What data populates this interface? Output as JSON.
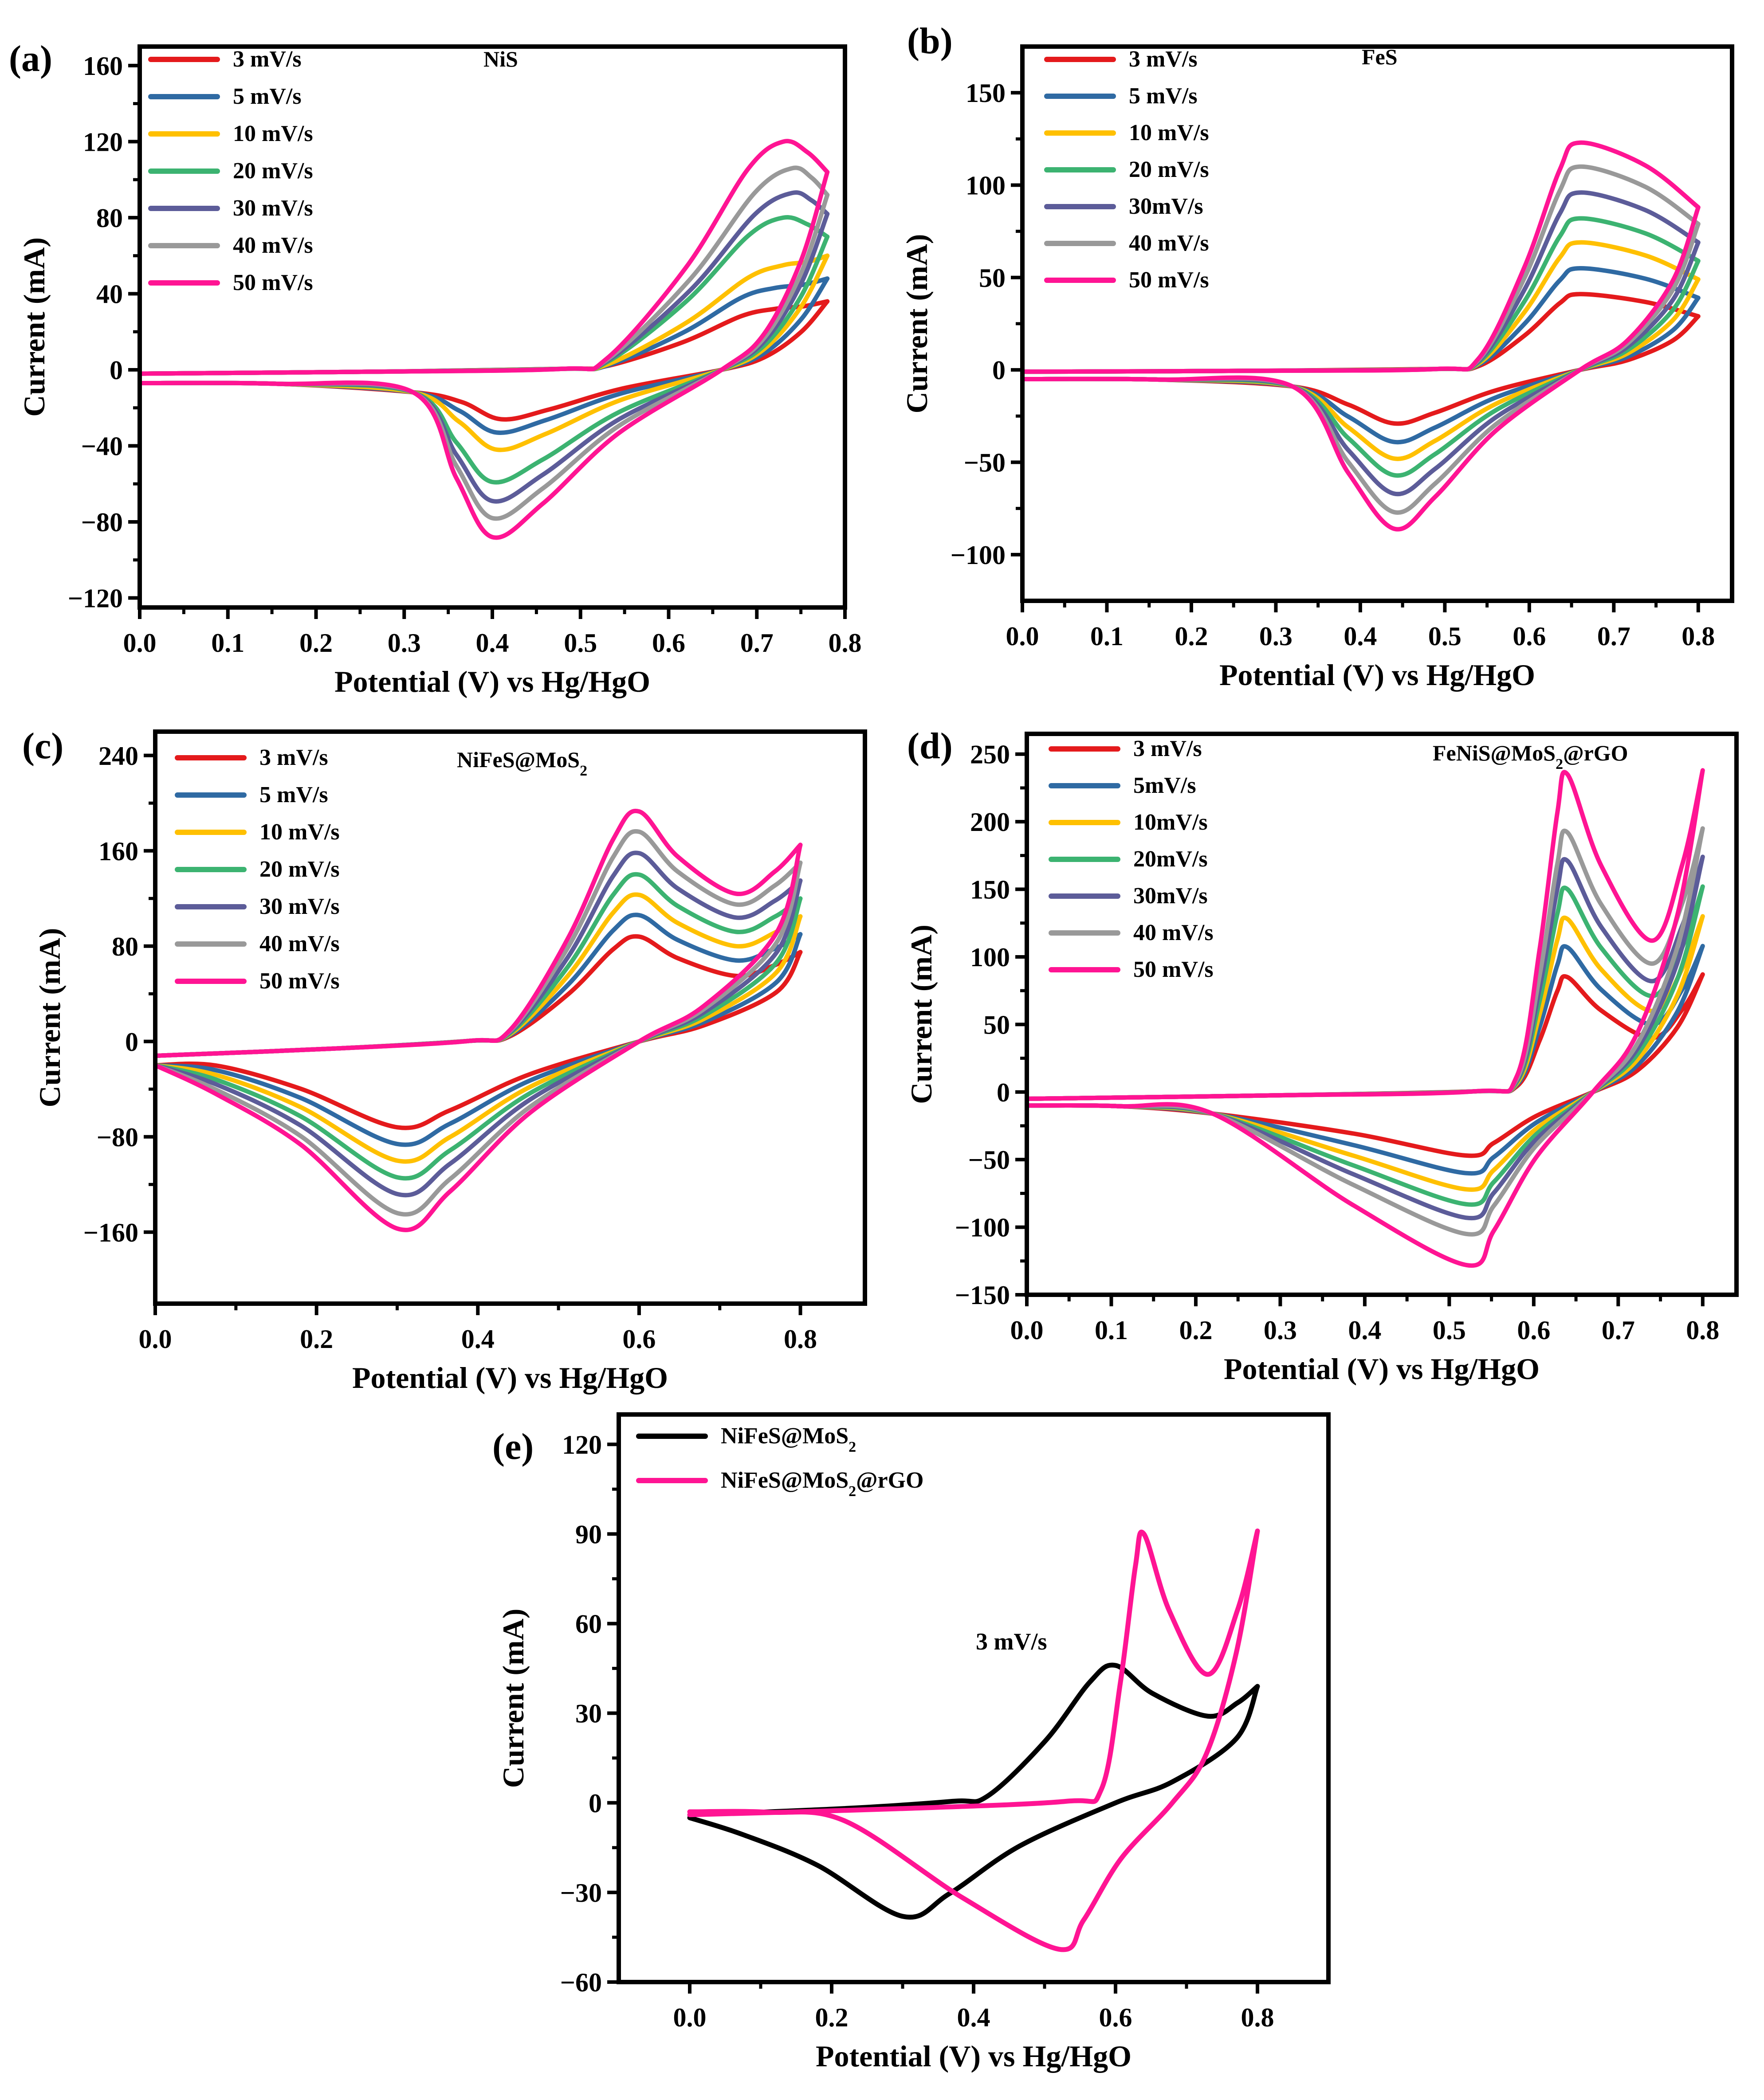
{
  "chart_data": [
    {
      "panel": "(a)",
      "type": "line",
      "title": "NiS",
      "xlabel": "Potential (V) vs Hg/HgO",
      "ylabel": "Current (mA)",
      "xlim": [
        0.0,
        0.8
      ],
      "ylim": [
        -125,
        170
      ],
      "xticks": [
        "0.0",
        "0.1",
        "0.2",
        "0.3",
        "0.4",
        "0.5",
        "0.6",
        "0.7",
        "0.8"
      ],
      "xtick_values": [
        0.0,
        0.1,
        0.2,
        0.3,
        0.4,
        0.5,
        0.6,
        0.7,
        0.8
      ],
      "yticks": [
        "−120",
        "−80",
        "−40",
        "0",
        "40",
        "80",
        "120",
        "160"
      ],
      "ytick_values": [
        -120,
        -80,
        -40,
        0,
        40,
        80,
        120,
        160
      ],
      "series": [
        {
          "name": "3 mV/s",
          "color": "#e41a1c",
          "x_start": 0.0,
          "x_end": 0.78,
          "start_anodic": -2,
          "onset": 0.53,
          "peak_x": 0.72,
          "peak_y": 32,
          "end_y": 36,
          "start_cathodic": -7,
          "cath_onset": 0.31,
          "valley_x": 0.41,
          "valley_y": -26,
          "cross_x": 0.66
        },
        {
          "name": "5 mV/s",
          "color": "#2f6aa3",
          "x_start": 0.0,
          "x_end": 0.78,
          "start_anodic": -2,
          "onset": 0.53,
          "peak_x": 0.72,
          "peak_y": 43,
          "end_y": 48,
          "start_cathodic": -7,
          "cath_onset": 0.31,
          "valley_x": 0.405,
          "valley_y": -33,
          "cross_x": 0.66
        },
        {
          "name": "10 mV/s",
          "color": "#ffc000",
          "x_start": 0.0,
          "x_end": 0.78,
          "start_anodic": -2,
          "onset": 0.53,
          "peak_x": 0.73,
          "peak_y": 55,
          "end_y": 60,
          "start_cathodic": -7,
          "cath_onset": 0.31,
          "valley_x": 0.405,
          "valley_y": -42,
          "cross_x": 0.66
        },
        {
          "name": "20 mV/s",
          "color": "#3cb371",
          "x_start": 0.0,
          "x_end": 0.78,
          "start_anodic": -2,
          "onset": 0.53,
          "peak_x": 0.73,
          "peak_y": 80,
          "end_y": 70,
          "start_cathodic": -7,
          "cath_onset": 0.31,
          "valley_x": 0.4,
          "valley_y": -59,
          "cross_x": 0.66
        },
        {
          "name": "30 mV/s",
          "color": "#5c5c99",
          "x_start": 0.0,
          "x_end": 0.78,
          "start_anodic": -2,
          "onset": 0.53,
          "peak_x": 0.74,
          "peak_y": 93,
          "end_y": 82,
          "start_cathodic": -7,
          "cath_onset": 0.31,
          "valley_x": 0.4,
          "valley_y": -69,
          "cross_x": 0.66
        },
        {
          "name": "40 mV/s",
          "color": "#999999",
          "x_start": 0.0,
          "x_end": 0.78,
          "start_anodic": -2,
          "onset": 0.53,
          "peak_x": 0.74,
          "peak_y": 106,
          "end_y": 92,
          "start_cathodic": -7,
          "cath_onset": 0.31,
          "valley_x": 0.4,
          "valley_y": -78,
          "cross_x": 0.66
        },
        {
          "name": "50 mV/s",
          "color": "#ff1493",
          "x_start": 0.0,
          "x_end": 0.78,
          "start_anodic": -2,
          "onset": 0.53,
          "peak_x": 0.73,
          "peak_y": 120,
          "end_y": 104,
          "start_cathodic": -7,
          "cath_onset": 0.31,
          "valley_x": 0.4,
          "valley_y": -88,
          "cross_x": 0.66
        }
      ]
    },
    {
      "panel": "(b)",
      "type": "line",
      "title": "FeS",
      "xlabel": "Potential (V) vs Hg/HgO",
      "ylabel": "Current (mA)",
      "xlim": [
        0.0,
        0.84
      ],
      "ylim": [
        -125,
        175
      ],
      "xticks": [
        "0.0",
        "0.1",
        "0.2",
        "0.3",
        "0.4",
        "0.5",
        "0.6",
        "0.7",
        "0.8"
      ],
      "xtick_values": [
        0.0,
        0.1,
        0.2,
        0.3,
        0.4,
        0.5,
        0.6,
        0.7,
        0.8
      ],
      "yticks": [
        "−100",
        "−50",
        "0",
        "50",
        "100",
        "150"
      ],
      "ytick_values": [
        -100,
        -50,
        0,
        50,
        100,
        150
      ],
      "series": [
        {
          "name": "3 mV/s",
          "color": "#e41a1c",
          "x_start": 0.0,
          "x_end": 0.8,
          "start_anodic": -1,
          "onset": 0.54,
          "peak_x": 0.66,
          "peak_y": 41,
          "end_y": 29,
          "start_cathodic": -5,
          "cath_onset": 0.32,
          "valley_x": 0.44,
          "valley_y": -29,
          "cross_x": 0.66
        },
        {
          "name": "5 mV/s",
          "color": "#2f6aa3",
          "x_start": 0.0,
          "x_end": 0.8,
          "start_anodic": -1,
          "onset": 0.54,
          "peak_x": 0.66,
          "peak_y": 55,
          "end_y": 39,
          "start_cathodic": -5,
          "cath_onset": 0.32,
          "valley_x": 0.44,
          "valley_y": -39,
          "cross_x": 0.66
        },
        {
          "name": "10 mV/s",
          "color": "#ffc000",
          "x_start": 0.0,
          "x_end": 0.8,
          "start_anodic": -1,
          "onset": 0.54,
          "peak_x": 0.66,
          "peak_y": 69,
          "end_y": 49,
          "start_cathodic": -5,
          "cath_onset": 0.32,
          "valley_x": 0.44,
          "valley_y": -48,
          "cross_x": 0.66
        },
        {
          "name": "20 mV/s",
          "color": "#3cb371",
          "x_start": 0.0,
          "x_end": 0.8,
          "start_anodic": -1,
          "onset": 0.54,
          "peak_x": 0.66,
          "peak_y": 82,
          "end_y": 59,
          "start_cathodic": -5,
          "cath_onset": 0.32,
          "valley_x": 0.44,
          "valley_y": -57,
          "cross_x": 0.66
        },
        {
          "name": "30mV/s",
          "color": "#5c5c99",
          "x_start": 0.0,
          "x_end": 0.8,
          "start_anodic": -1,
          "onset": 0.54,
          "peak_x": 0.66,
          "peak_y": 96,
          "end_y": 69,
          "start_cathodic": -5,
          "cath_onset": 0.32,
          "valley_x": 0.44,
          "valley_y": -67,
          "cross_x": 0.66
        },
        {
          "name": "40 mV/s",
          "color": "#999999",
          "x_start": 0.0,
          "x_end": 0.8,
          "start_anodic": -1,
          "onset": 0.54,
          "peak_x": 0.66,
          "peak_y": 110,
          "end_y": 79,
          "start_cathodic": -5,
          "cath_onset": 0.32,
          "valley_x": 0.44,
          "valley_y": -77,
          "cross_x": 0.66
        },
        {
          "name": "50 mV/s",
          "color": "#ff1493",
          "x_start": 0.0,
          "x_end": 0.8,
          "start_anodic": -1,
          "onset": 0.54,
          "peak_x": 0.66,
          "peak_y": 123,
          "end_y": 88,
          "start_cathodic": -5,
          "cath_onset": 0.32,
          "valley_x": 0.44,
          "valley_y": -86,
          "cross_x": 0.66
        }
      ]
    },
    {
      "panel": "(c)",
      "type": "line",
      "title": "NiFeS@MoS2",
      "xlabel": "Potential (V) vs Hg/HgO",
      "ylabel": "Current (mA)",
      "xlim": [
        0.0,
        0.88
      ],
      "ylim": [
        -220,
        260
      ],
      "xticks": [
        "0.0",
        "0.2",
        "0.4",
        "0.6",
        "0.8"
      ],
      "xtick_values": [
        0.0,
        0.2,
        0.4,
        0.6,
        0.8
      ],
      "yticks": [
        "−160",
        "−80",
        "0",
        "80",
        "160",
        "240"
      ],
      "ytick_values": [
        -160,
        -80,
        0,
        80,
        160,
        240
      ],
      "series": [
        {
          "name": "3 mV/s",
          "color": "#e41a1c",
          "x_start": 0.0,
          "x_end": 0.8,
          "start_anodic": -12,
          "onset": 0.44,
          "peak_x": 0.6,
          "peak_y": 88,
          "trough_x": 0.72,
          "trough_y": 55,
          "end_y": 75,
          "start_cathodic": -20,
          "valley_x": 0.3,
          "valley_y": -72,
          "cross_x": 0.6
        },
        {
          "name": "5 mV/s",
          "color": "#2f6aa3",
          "x_start": 0.0,
          "x_end": 0.8,
          "start_anodic": -12,
          "onset": 0.44,
          "peak_x": 0.6,
          "peak_y": 106,
          "trough_x": 0.72,
          "trough_y": 68,
          "end_y": 90,
          "start_cathodic": -20,
          "valley_x": 0.3,
          "valley_y": -86,
          "cross_x": 0.6
        },
        {
          "name": "10 mV/s",
          "color": "#ffc000",
          "x_start": 0.0,
          "x_end": 0.8,
          "start_anodic": -12,
          "onset": 0.44,
          "peak_x": 0.6,
          "peak_y": 123,
          "trough_x": 0.72,
          "trough_y": 80,
          "end_y": 105,
          "start_cathodic": -20,
          "valley_x": 0.3,
          "valley_y": -100,
          "cross_x": 0.6
        },
        {
          "name": "20 mV/s",
          "color": "#3cb371",
          "x_start": 0.0,
          "x_end": 0.8,
          "start_anodic": -12,
          "onset": 0.44,
          "peak_x": 0.6,
          "peak_y": 140,
          "trough_x": 0.72,
          "trough_y": 92,
          "end_y": 120,
          "start_cathodic": -20,
          "valley_x": 0.3,
          "valley_y": -114,
          "cross_x": 0.6
        },
        {
          "name": "30 mV/s",
          "color": "#5c5c99",
          "x_start": 0.0,
          "x_end": 0.8,
          "start_anodic": -12,
          "onset": 0.44,
          "peak_x": 0.6,
          "peak_y": 158,
          "trough_x": 0.72,
          "trough_y": 104,
          "end_y": 135,
          "start_cathodic": -20,
          "valley_x": 0.3,
          "valley_y": -128,
          "cross_x": 0.6
        },
        {
          "name": "40 mV/s",
          "color": "#999999",
          "x_start": 0.0,
          "x_end": 0.8,
          "start_anodic": -12,
          "onset": 0.44,
          "peak_x": 0.6,
          "peak_y": 176,
          "trough_x": 0.72,
          "trough_y": 115,
          "end_y": 150,
          "start_cathodic": -20,
          "valley_x": 0.3,
          "valley_y": -144,
          "cross_x": 0.6
        },
        {
          "name": "50 mV/s",
          "color": "#ff1493",
          "x_start": 0.0,
          "x_end": 0.8,
          "start_anodic": -12,
          "onset": 0.44,
          "peak_x": 0.6,
          "peak_y": 193,
          "trough_x": 0.72,
          "trough_y": 124,
          "end_y": 165,
          "start_cathodic": -20,
          "valley_x": 0.3,
          "valley_y": -157,
          "cross_x": 0.6
        }
      ]
    },
    {
      "panel": "(d)",
      "type": "line",
      "title": "FeNiS@MoS2@rGO",
      "xlabel": "Potential (V) vs Hg/HgO",
      "ylabel": "Current (mA)",
      "xlim": [
        0.0,
        0.84
      ],
      "ylim": [
        -150,
        265
      ],
      "xticks": [
        "0.0",
        "0.1",
        "0.2",
        "0.3",
        "0.4",
        "0.5",
        "0.6",
        "0.7",
        "0.8"
      ],
      "xtick_values": [
        0.0,
        0.1,
        0.2,
        0.3,
        0.4,
        0.5,
        0.6,
        0.7,
        0.8
      ],
      "yticks": [
        "−150",
        "−100",
        "−50",
        "0",
        "50",
        "100",
        "150",
        "200",
        "250"
      ],
      "ytick_values": [
        -150,
        -100,
        -50,
        0,
        50,
        100,
        150,
        200,
        250
      ],
      "series": [
        {
          "name": "3 mV/s",
          "color": "#e41a1c",
          "x_start": 0.0,
          "x_end": 0.8,
          "start_anodic": -5,
          "onset": 0.58,
          "peak_x": 0.64,
          "peak_y": 85,
          "trough_x": 0.74,
          "trough_y": 40,
          "end_y": 87,
          "start_cathodic": -10,
          "cath_onset": 0.22,
          "valley_x": 0.52,
          "valley_y": -47,
          "cross_x": 0.67
        },
        {
          "name": "5mV/s",
          "color": "#2f6aa3",
          "x_start": 0.0,
          "x_end": 0.8,
          "start_anodic": -5,
          "onset": 0.58,
          "peak_x": 0.64,
          "peak_y": 107,
          "trough_x": 0.74,
          "trough_y": 50,
          "end_y": 108,
          "start_cathodic": -10,
          "cath_onset": 0.22,
          "valley_x": 0.52,
          "valley_y": -60,
          "cross_x": 0.67
        },
        {
          "name": "10mV/s",
          "color": "#ffc000",
          "x_start": 0.0,
          "x_end": 0.8,
          "start_anodic": -5,
          "onset": 0.58,
          "peak_x": 0.64,
          "peak_y": 128,
          "trough_x": 0.74,
          "trough_y": 60,
          "end_y": 130,
          "start_cathodic": -10,
          "cath_onset": 0.22,
          "valley_x": 0.52,
          "valley_y": -72,
          "cross_x": 0.67
        },
        {
          "name": "20mV/s",
          "color": "#3cb371",
          "x_start": 0.0,
          "x_end": 0.8,
          "start_anodic": -5,
          "onset": 0.58,
          "peak_x": 0.64,
          "peak_y": 150,
          "trough_x": 0.74,
          "trough_y": 71,
          "end_y": 152,
          "start_cathodic": -10,
          "cath_onset": 0.22,
          "valley_x": 0.52,
          "valley_y": -83,
          "cross_x": 0.67
        },
        {
          "name": "30mV/s",
          "color": "#5c5c99",
          "x_start": 0.0,
          "x_end": 0.8,
          "start_anodic": -5,
          "onset": 0.58,
          "peak_x": 0.64,
          "peak_y": 171,
          "trough_x": 0.74,
          "trough_y": 82,
          "end_y": 174,
          "start_cathodic": -10,
          "cath_onset": 0.22,
          "valley_x": 0.52,
          "valley_y": -93,
          "cross_x": 0.67
        },
        {
          "name": "40 mV/s",
          "color": "#999999",
          "x_start": 0.0,
          "x_end": 0.8,
          "start_anodic": -5,
          "onset": 0.58,
          "peak_x": 0.64,
          "peak_y": 192,
          "trough_x": 0.74,
          "trough_y": 95,
          "end_y": 195,
          "start_cathodic": -10,
          "cath_onset": 0.22,
          "valley_x": 0.52,
          "valley_y": -105,
          "cross_x": 0.67
        },
        {
          "name": "50 mV/s",
          "color": "#ff1493",
          "x_start": 0.0,
          "x_end": 0.8,
          "start_anodic": -5,
          "onset": 0.58,
          "peak_x": 0.64,
          "peak_y": 235,
          "trough_x": 0.74,
          "trough_y": 112,
          "end_y": 238,
          "start_cathodic": -10,
          "cath_onset": 0.22,
          "valley_x": 0.52,
          "valley_y": -128,
          "cross_x": 0.67
        }
      ]
    },
    {
      "panel": "(e)",
      "type": "line",
      "title": "",
      "annotation": "3 mV/s",
      "xlabel": "Potential (V) vs Hg/HgO",
      "ylabel": "Current (mA)",
      "xlim": [
        -0.1,
        0.9
      ],
      "ylim": [
        -60,
        130
      ],
      "xticks": [
        "0.0",
        "0.2",
        "0.4",
        "0.6",
        "0.8"
      ],
      "xtick_values": [
        0.0,
        0.2,
        0.4,
        0.6,
        0.8
      ],
      "yticks": [
        "−60",
        "−30",
        "0",
        "30",
        "60",
        "90",
        "120"
      ],
      "ytick_values": [
        -60,
        -30,
        0,
        30,
        60,
        90,
        120
      ],
      "series": [
        {
          "name": "NiFeS@MoS",
          "sub": "2",
          "suffix": "",
          "color": "#000000",
          "x_start": 0.0,
          "x_end": 0.8,
          "start_anodic": -4,
          "onset": 0.42,
          "peak_x": 0.6,
          "peak_y": 46,
          "trough_x": 0.73,
          "trough_y": 29,
          "end_y": 39,
          "start_cathodic": -5,
          "valley_x": 0.3,
          "valley_y": -38,
          "cross_x": 0.6
        },
        {
          "name": "NiFeS@MoS",
          "sub": "2",
          "suffix": "@rGO",
          "color": "#ff1493",
          "x_start": 0.0,
          "x_end": 0.8,
          "start_anodic": -4,
          "onset": 0.58,
          "peak_x": 0.64,
          "peak_y": 90,
          "trough_x": 0.73,
          "trough_y": 43,
          "end_y": 91,
          "start_cathodic": -3,
          "cath_onset": 0.22,
          "valley_x": 0.52,
          "valley_y": -49,
          "cross_x": 0.68
        }
      ]
    }
  ],
  "panel_titles": {
    "a": {
      "main": "NiS",
      "sub": "",
      "tail": ""
    },
    "b": {
      "main": "FeS",
      "sub": "",
      "tail": ""
    },
    "c": {
      "main": "NiFeS@MoS",
      "sub": "2",
      "tail": ""
    },
    "d": {
      "main": "FeNiS@MoS",
      "sub": "2",
      "tail": "@rGO"
    }
  }
}
